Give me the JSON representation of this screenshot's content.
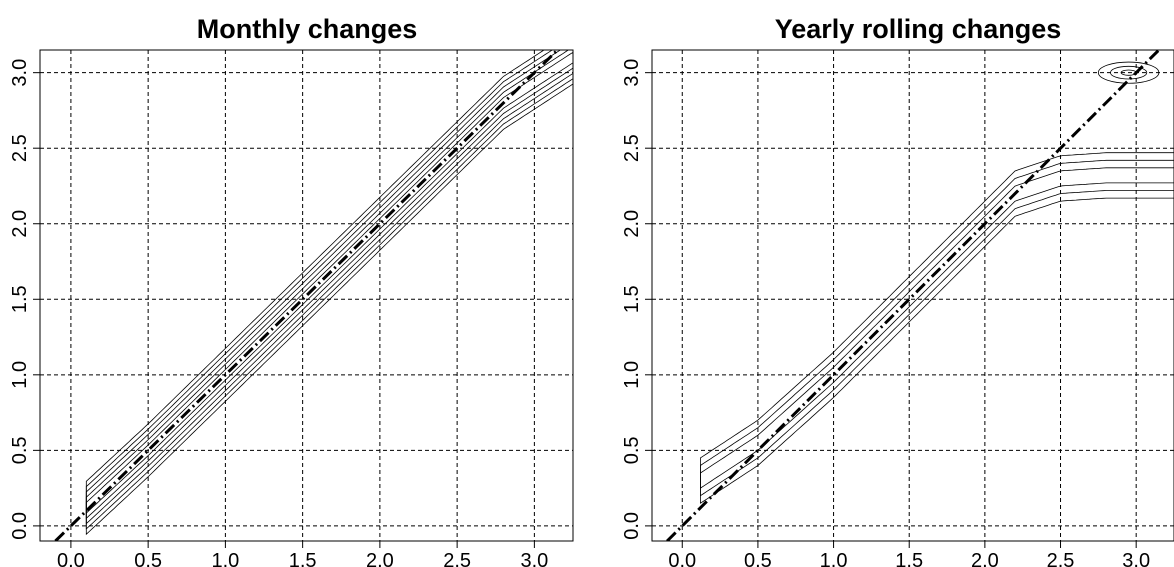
{
  "chart_data": [
    {
      "type": "contour",
      "title": "Monthly changes",
      "xlabel": "",
      "ylabel": "",
      "xlim": [
        -0.2,
        3.25
      ],
      "ylim": [
        -0.1,
        3.15
      ],
      "xticks": [
        0.0,
        0.5,
        1.0,
        1.5,
        2.0,
        2.5,
        3.0
      ],
      "yticks": [
        0.0,
        0.5,
        1.0,
        1.5,
        2.0,
        2.5,
        3.0
      ],
      "xtick_labels": [
        "0.0",
        "0.5",
        "1.0",
        "1.5",
        "2.0",
        "2.5",
        "3.0"
      ],
      "ytick_labels": [
        "0.0",
        "0.5",
        "1.0",
        "1.5",
        "2.0",
        "2.5",
        "3.0"
      ],
      "grid": true,
      "reference_line": {
        "style": "dash-dot",
        "points": [
          [
            -0.1,
            -0.1
          ],
          [
            3.15,
            3.15
          ]
        ]
      },
      "contour_band": {
        "centerline": [
          [
            0.1,
            0.12
          ],
          [
            0.5,
            0.5
          ],
          [
            1.0,
            1.0
          ],
          [
            1.5,
            1.5
          ],
          [
            2.0,
            2.0
          ],
          [
            2.5,
            2.5
          ],
          [
            2.8,
            2.8
          ],
          [
            3.25,
            3.1
          ]
        ],
        "half_widths": [
          0.035,
          0.07,
          0.105,
          0.14,
          0.175
        ],
        "range": [
          0.1,
          3.25
        ]
      }
    },
    {
      "type": "contour",
      "title": "Yearly rolling changes",
      "xlabel": "",
      "ylabel": "",
      "xlim": [
        -0.2,
        3.25
      ],
      "ylim": [
        -0.1,
        3.15
      ],
      "xticks": [
        0.0,
        0.5,
        1.0,
        1.5,
        2.0,
        2.5,
        3.0
      ],
      "yticks": [
        0.0,
        0.5,
        1.0,
        1.5,
        2.0,
        2.5,
        3.0
      ],
      "xtick_labels": [
        "0.0",
        "0.5",
        "1.0",
        "1.5",
        "2.0",
        "2.5",
        "3.0"
      ],
      "ytick_labels": [
        "0.0",
        "0.5",
        "1.0",
        "1.5",
        "2.0",
        "2.5",
        "3.0"
      ],
      "grid": true,
      "reference_line": {
        "style": "dash-dot",
        "points": [
          [
            -0.1,
            -0.1
          ],
          [
            3.15,
            3.15
          ]
        ]
      },
      "contour_band": {
        "centerline": [
          [
            0.12,
            0.3
          ],
          [
            0.5,
            0.55
          ],
          [
            1.0,
            1.0
          ],
          [
            1.5,
            1.5
          ],
          [
            1.9,
            1.9
          ],
          [
            2.2,
            2.2
          ],
          [
            2.5,
            2.3
          ],
          [
            2.8,
            2.32
          ],
          [
            3.25,
            2.32
          ]
        ],
        "half_widths": [
          0.05,
          0.1,
          0.15
        ],
        "range": [
          0.12,
          3.25
        ]
      },
      "contour_islands": [
        {
          "cx": 2.95,
          "cy": 3.0,
          "rx": 0.2,
          "ry": 0.07
        }
      ]
    }
  ]
}
